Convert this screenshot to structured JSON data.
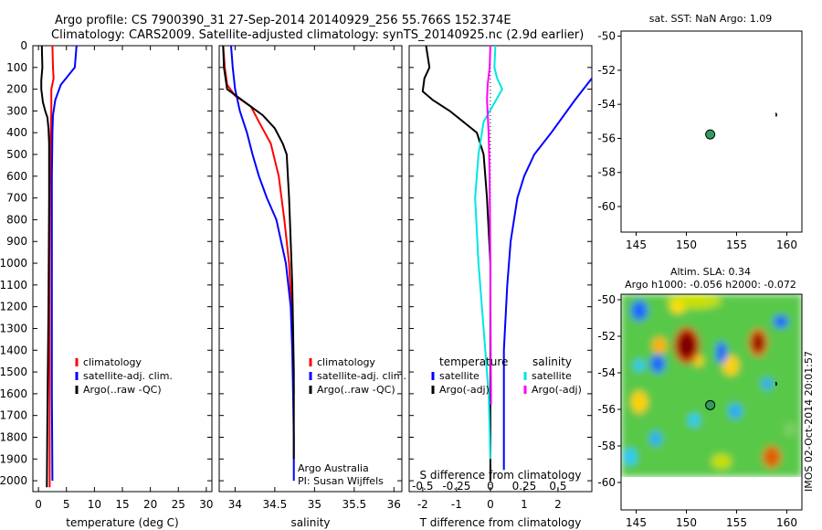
{
  "header": {
    "title_line1": "Argo profile: CS 7900390_31 27-Sep-2014 20140929_256 55.766S 152.374E",
    "title_line2": "Climatology: CARS2009. Satellite-adjusted climatology: synTS_20140925.nc (2.9d earlier)"
  },
  "colors": {
    "climatology": "#ff0000",
    "satellite": "#0000ff",
    "argo": "#000000",
    "cyan": "#00e5e5",
    "magenta": "#ff00ff",
    "float_marker": "#2e9e5b"
  },
  "chart_data": [
    {
      "id": "temperature",
      "type": "line",
      "xlabel": "temperature (deg C)",
      "ylim": [
        0,
        2050
      ],
      "xlim": [
        -1,
        31
      ],
      "xticks": [
        0,
        5,
        10,
        15,
        20,
        25,
        30
      ],
      "yticks": [
        0,
        100,
        200,
        300,
        400,
        500,
        600,
        700,
        800,
        900,
        1000,
        1100,
        1200,
        1300,
        1400,
        1500,
        1600,
        1700,
        1800,
        1900,
        2000
      ],
      "legend": [
        "climatology",
        "satellite-adj. clim.",
        "Argo(..raw -QC)"
      ],
      "series": [
        {
          "name": "climatology",
          "color": "#ff0000",
          "x": [
            2.5,
            2.6,
            2.7,
            2.3,
            2.3,
            2.2,
            2.1,
            2.0,
            2.0,
            2.0,
            2.0
          ],
          "y": [
            0,
            100,
            150,
            200,
            300,
            400,
            600,
            1000,
            1400,
            1800,
            2030
          ]
        },
        {
          "name": "satellite-adj. clim.",
          "color": "#0000ff",
          "x": [
            6.8,
            6.5,
            4.0,
            3.0,
            2.6,
            2.5,
            2.4,
            2.4,
            2.4,
            2.5
          ],
          "y": [
            0,
            100,
            180,
            250,
            320,
            400,
            600,
            1000,
            1600,
            2000
          ]
        },
        {
          "name": "Argo(..raw -QC)",
          "color": "#000000",
          "x": [
            0.6,
            0.7,
            0.5,
            0.5,
            0.8,
            1.2,
            1.6,
            1.8,
            1.9,
            1.9,
            1.8,
            1.6,
            1.5
          ],
          "y": [
            0,
            100,
            160,
            200,
            260,
            300,
            330,
            380,
            450,
            700,
            1200,
            1700,
            2030
          ]
        }
      ]
    },
    {
      "id": "salinity",
      "type": "line",
      "xlabel": "salinity",
      "ylim": [
        0,
        2050
      ],
      "xlim": [
        33.8,
        36.1
      ],
      "xticks": [
        34,
        34.5,
        35,
        35.5,
        36
      ],
      "legend": [
        "climatology",
        "satellite-adj. clim.",
        "Argo(..raw -QC)"
      ],
      "series": [
        {
          "name": "climatology",
          "color": "#ff0000",
          "x": [
            33.85,
            33.87,
            33.9,
            34.0,
            34.2,
            34.3,
            34.45,
            34.55,
            34.62,
            34.68,
            34.71,
            34.73,
            34.74
          ],
          "y": [
            0,
            100,
            180,
            230,
            280,
            350,
            450,
            600,
            800,
            1000,
            1200,
            1400,
            1600
          ]
        },
        {
          "name": "satellite-adj. clim.",
          "color": "#0000ff",
          "x": [
            33.95,
            33.97,
            34.0,
            34.06,
            34.15,
            34.22,
            34.3,
            34.4,
            34.52,
            34.64,
            34.7,
            34.72,
            34.73,
            34.74,
            34.74,
            34.74
          ],
          "y": [
            0,
            100,
            200,
            300,
            400,
            500,
            600,
            700,
            800,
            1000,
            1200,
            1400,
            1600,
            1800,
            1900,
            2000
          ]
        },
        {
          "name": "Argo(..raw -QC)",
          "color": "#000000",
          "x": [
            33.85,
            33.86,
            33.9,
            34.05,
            34.2,
            34.35,
            34.5,
            34.6,
            34.65,
            34.68,
            34.7,
            34.72,
            34.73,
            34.74,
            34.74,
            34.74
          ],
          "y": [
            0,
            100,
            200,
            240,
            280,
            320,
            380,
            450,
            500,
            700,
            900,
            1100,
            1300,
            1500,
            1700,
            1900
          ]
        }
      ],
      "annotations": [
        "Argo Australia",
        "PI: Susan Wijffels"
      ]
    },
    {
      "id": "differences",
      "type": "line",
      "xlabel": "T difference from climatology",
      "xlabel_top": "S difference from climatology",
      "ylim": [
        0,
        2050
      ],
      "xlim": [
        -2.4,
        3.0
      ],
      "xticks": [
        -2,
        -1,
        0,
        1,
        2
      ],
      "xticks_s": [
        "-0.5",
        "-0.25",
        "0",
        "0.25",
        "0.5"
      ],
      "legend_left_title": "temperature",
      "legend_right_title": "salinity",
      "legend_left": [
        "satellite",
        "Argo(-adj)"
      ],
      "legend_right": [
        "satellite",
        "Argo(-adj)"
      ],
      "series": [
        {
          "name": "T satellite",
          "color": "#0000ff",
          "x": [
            3.0,
            2.5,
            1.8,
            1.3,
            1.0,
            0.8,
            0.6,
            0.5,
            0.4,
            0.4,
            0.4
          ],
          "y": [
            150,
            250,
            400,
            500,
            600,
            700,
            900,
            1100,
            1400,
            1800,
            1950
          ]
        },
        {
          "name": "T Argo(-adj)",
          "color": "#000000",
          "x": [
            -1.9,
            -1.8,
            -1.95,
            -2.0,
            -1.7,
            -1.2,
            -0.8,
            -0.4,
            -0.2,
            -0.1,
            0.0,
            0.0,
            0.0
          ],
          "y": [
            0,
            100,
            150,
            210,
            250,
            300,
            350,
            400,
            500,
            700,
            1000,
            1500,
            2000
          ]
        },
        {
          "name": "S satellite",
          "color": "#00e5e5",
          "x": [
            0.15,
            0.12,
            0.2,
            0.35,
            -0.2,
            -0.35,
            -0.45,
            -0.35,
            -0.2,
            -0.05,
            0.0
          ],
          "y": [
            0,
            100,
            150,
            200,
            350,
            500,
            700,
            1000,
            1300,
            1600,
            1900
          ]
        },
        {
          "name": "S Argo(-adj)",
          "color": "#ff00ff",
          "x": [
            0.0,
            -0.02,
            -0.08,
            -0.1,
            -0.05,
            -0.02,
            0.0,
            0.01,
            0.02,
            0.02
          ],
          "y": [
            0,
            100,
            180,
            250,
            400,
            600,
            1000,
            1400,
            1600,
            1650
          ]
        }
      ]
    },
    {
      "id": "sst_map",
      "type": "scatter",
      "title": "sat. SST: NaN Argo: 1.09",
      "xlim": [
        143.5,
        161.5
      ],
      "ylim": [
        -61.5,
        -49.7
      ],
      "xticks": [
        145,
        150,
        155,
        160
      ],
      "yticks": [
        -50,
        -52,
        -54,
        -56,
        -58,
        -60
      ],
      "float": {
        "lon": 152.374,
        "lat": -55.766
      }
    },
    {
      "id": "sla_map",
      "type": "heatmap",
      "title_line1": "Altim. SLA: 0.34",
      "title_line2": "Argo h1000: -0.056 h2000: -0.072",
      "xlim": [
        143.5,
        161.5
      ],
      "ylim": [
        -61.5,
        -49.7
      ],
      "xticks": [
        145,
        150,
        155,
        160
      ],
      "yticks": [
        -50,
        -52,
        -54,
        -56,
        -58,
        -60
      ],
      "float": {
        "lon": 152.374,
        "lat": -55.766
      }
    }
  ],
  "side_label": "IMOS 02-Oct-2014 20:01:57"
}
